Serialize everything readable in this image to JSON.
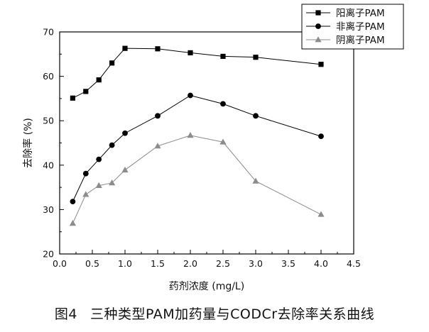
{
  "chart_data": {
    "type": "line",
    "title": "",
    "xlabel": "药剂浓度 (mg/L)",
    "ylabel": "去除率 (%)",
    "xlim": [
      0.0,
      4.5
    ],
    "ylim": [
      20,
      70
    ],
    "xticks": [
      0.0,
      0.5,
      1.0,
      1.5,
      2.0,
      2.5,
      3.0,
      3.5,
      4.0,
      4.5
    ],
    "xtick_labels": [
      "0.0",
      "0.5",
      "1.0",
      "1.5",
      "2.0",
      "2.5",
      "3.0",
      "3.5",
      "4.0",
      "4.5"
    ],
    "yticks": [
      20,
      30,
      40,
      50,
      60,
      70
    ],
    "ytick_labels": [
      "20",
      "30",
      "40",
      "50",
      "60",
      "70"
    ],
    "grid": false,
    "legend_position": "top-right",
    "series": [
      {
        "name": "阳离子PAM",
        "marker": "square",
        "color": "#000000",
        "x": [
          0.2,
          0.4,
          0.6,
          0.8,
          1.0,
          1.5,
          2.0,
          2.5,
          3.0,
          4.0
        ],
        "y": [
          55.1,
          56.6,
          59.2,
          63.0,
          66.3,
          66.2,
          65.3,
          64.5,
          64.3,
          62.7
        ]
      },
      {
        "name": "非离子PAM",
        "marker": "circle",
        "color": "#000000",
        "x": [
          0.2,
          0.4,
          0.6,
          0.8,
          1.0,
          1.5,
          2.0,
          2.5,
          3.0,
          4.0
        ],
        "y": [
          31.8,
          38.1,
          41.3,
          44.5,
          47.2,
          51.1,
          55.7,
          53.8,
          51.1,
          46.5
        ]
      },
      {
        "name": "阴离子PAM",
        "marker": "triangle",
        "color": "#8c8c8c",
        "x": [
          0.2,
          0.4,
          0.6,
          0.8,
          1.0,
          1.5,
          2.0,
          2.5,
          3.0,
          4.0
        ],
        "y": [
          26.9,
          33.4,
          35.4,
          36.0,
          38.9,
          44.3,
          46.7,
          45.2,
          36.4,
          28.9
        ]
      }
    ]
  },
  "caption": {
    "number": "图4",
    "text": "三种类型PAM加药量与CODCr去除率关系曲线"
  }
}
